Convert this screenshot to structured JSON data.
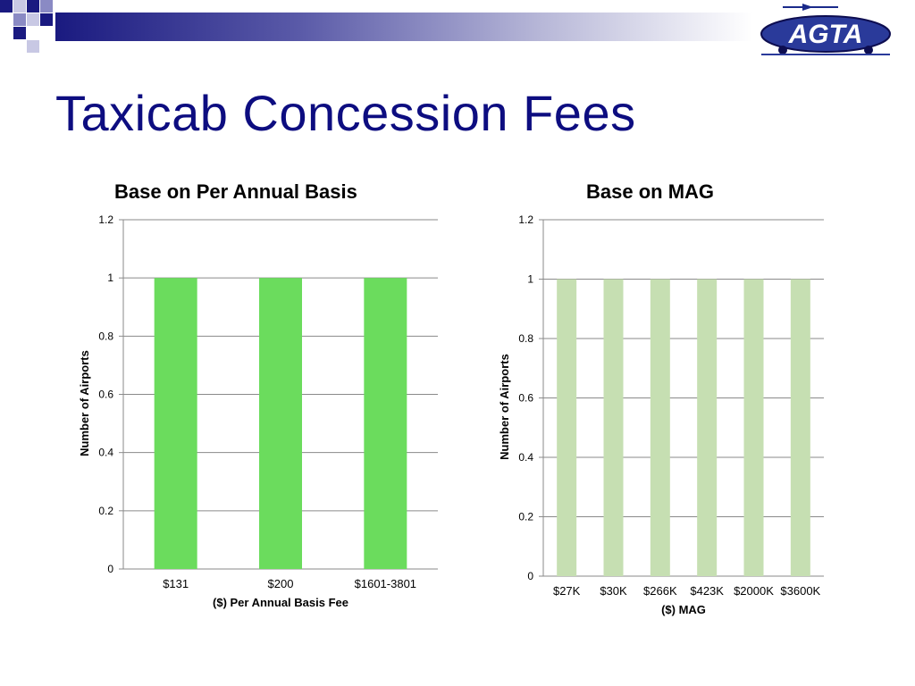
{
  "slide": {
    "title": "Taxicab Concession Fees",
    "logo_text": "AGTA",
    "colors": {
      "title": "#0d0d80",
      "bar_left": "#6bdc5d",
      "bar_right": "#c6dfb2",
      "grid": "#8a8a8a"
    }
  },
  "chart_data": [
    {
      "type": "bar",
      "title": "Base on Per Annual Basis",
      "categories": [
        "$131",
        "$200",
        "$1601-3801"
      ],
      "values": [
        1,
        1,
        1
      ],
      "xlabel": "($) Per Annual Basis Fee",
      "ylabel": "Number of Airports",
      "ylim": [
        0,
        1.2
      ],
      "yticks": [
        0,
        0.2,
        0.4,
        0.6,
        0.8,
        1,
        1.2
      ],
      "grid": true,
      "legend": "none"
    },
    {
      "type": "bar",
      "title": "Base on MAG",
      "categories": [
        "$27K",
        "$30K",
        "$266K",
        "$423K",
        "$2000K",
        "$3600K"
      ],
      "values": [
        1,
        1,
        1,
        1,
        1,
        1
      ],
      "xlabel": "($) MAG",
      "ylabel": "Number of Airports",
      "ylim": [
        0,
        1.2
      ],
      "yticks": [
        0,
        0.2,
        0.4,
        0.6,
        0.8,
        1,
        1.2
      ],
      "grid": true,
      "legend": "none"
    }
  ]
}
